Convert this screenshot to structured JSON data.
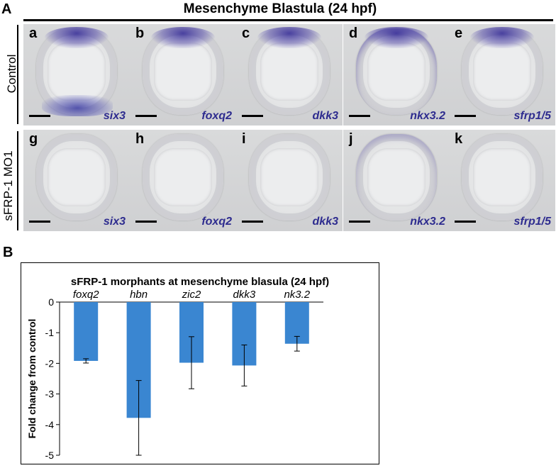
{
  "panel_a": {
    "letter": "A",
    "title": "Mesenchyme Blastula (24 hpf)",
    "rows": [
      {
        "label": "Control",
        "tiles": [
          {
            "letter": "a",
            "gene": "six3",
            "stain": "top-bottom"
          },
          {
            "letter": "b",
            "gene": "foxq2",
            "stain": "top"
          },
          {
            "letter": "c",
            "gene": "dkk3",
            "stain": "top"
          },
          {
            "letter": "d",
            "gene": "nkx3.2",
            "stain": "ring"
          },
          {
            "letter": "e",
            "gene": "sfrp1/5",
            "stain": "top"
          }
        ]
      },
      {
        "label": "sFRP-1 MO1",
        "tiles": [
          {
            "letter": "g",
            "gene": "six3",
            "stain": "none"
          },
          {
            "letter": "h",
            "gene": "foxq2",
            "stain": "none"
          },
          {
            "letter": "i",
            "gene": "dkk3",
            "stain": "none"
          },
          {
            "letter": "j",
            "gene": "nkx3.2",
            "stain": "faint"
          },
          {
            "letter": "k",
            "gene": "sfrp1/5",
            "stain": "none"
          }
        ]
      }
    ]
  },
  "panel_b": {
    "letter": "B"
  },
  "chart_data": {
    "type": "bar",
    "title": "sFRP-1 morphants at mesenchyme blasula  (24 hpf)",
    "xlabel": "",
    "ylabel": "Fold change from control",
    "categories": [
      "foxq2",
      "hbn",
      "zic2",
      "dkk3",
      "nk3.2"
    ],
    "values": [
      -1.92,
      -3.78,
      -1.98,
      -2.07,
      -1.36
    ],
    "errors": [
      0.07,
      1.22,
      0.85,
      0.67,
      0.24
    ],
    "ylim": [
      -5,
      0
    ],
    "yticks": [
      "0",
      "-1",
      "-2",
      "-3",
      "-4",
      "-5"
    ],
    "bar_color": "#3a86d1",
    "category_labels_position": "top",
    "grid": false,
    "legend": "none"
  }
}
